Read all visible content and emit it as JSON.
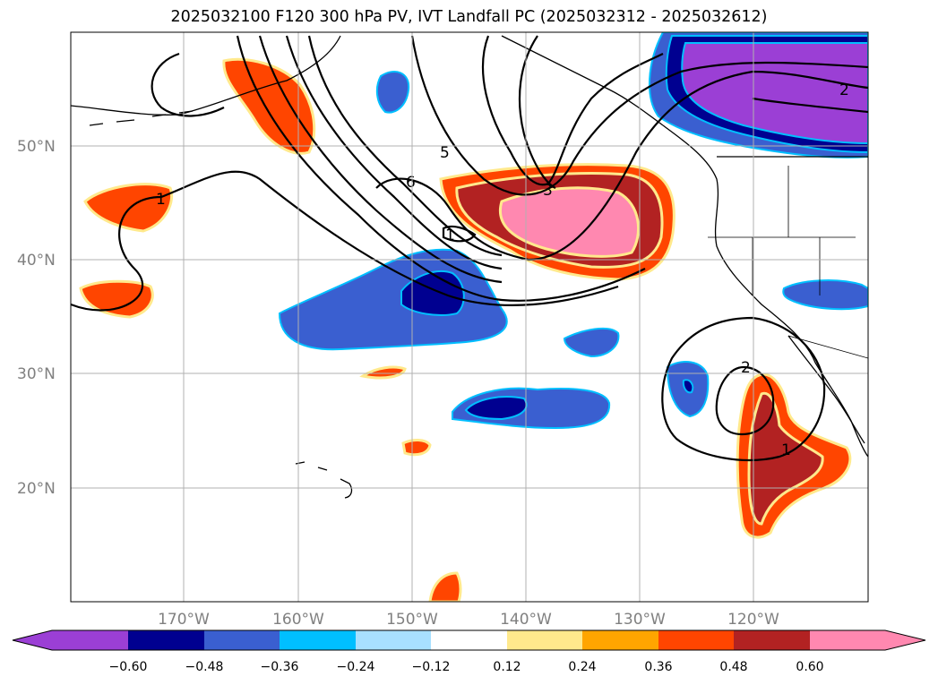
{
  "title": "2025032100 F120 300 hPa PV, IVT Landfall PC (2025032312 - 2025032612)",
  "map": {
    "lat_ticks": [
      "50°N",
      "40°N",
      "30°N",
      "20°N"
    ],
    "lon_ticks": [
      "170°W",
      "160°W",
      "150°W",
      "140°W",
      "130°W",
      "120°W"
    ],
    "contour_labels": [
      "5",
      "6",
      "1",
      "1",
      "2",
      "3",
      "2",
      "1"
    ]
  },
  "colorbar": {
    "tick_labels": [
      "−0.60",
      "−0.48",
      "−0.36",
      "−0.24",
      "−0.12",
      "0.12",
      "0.24",
      "0.36",
      "0.48",
      "0.60"
    ],
    "colors": [
      "#9b3fd5",
      "#000090",
      "#3a5fd0",
      "#00bfff",
      "#a8e0ff",
      "#ffffff",
      "#ffe98c",
      "#ffa500",
      "#ff4500",
      "#b22222",
      "#ff88b0",
      "#ff88b0"
    ]
  }
}
